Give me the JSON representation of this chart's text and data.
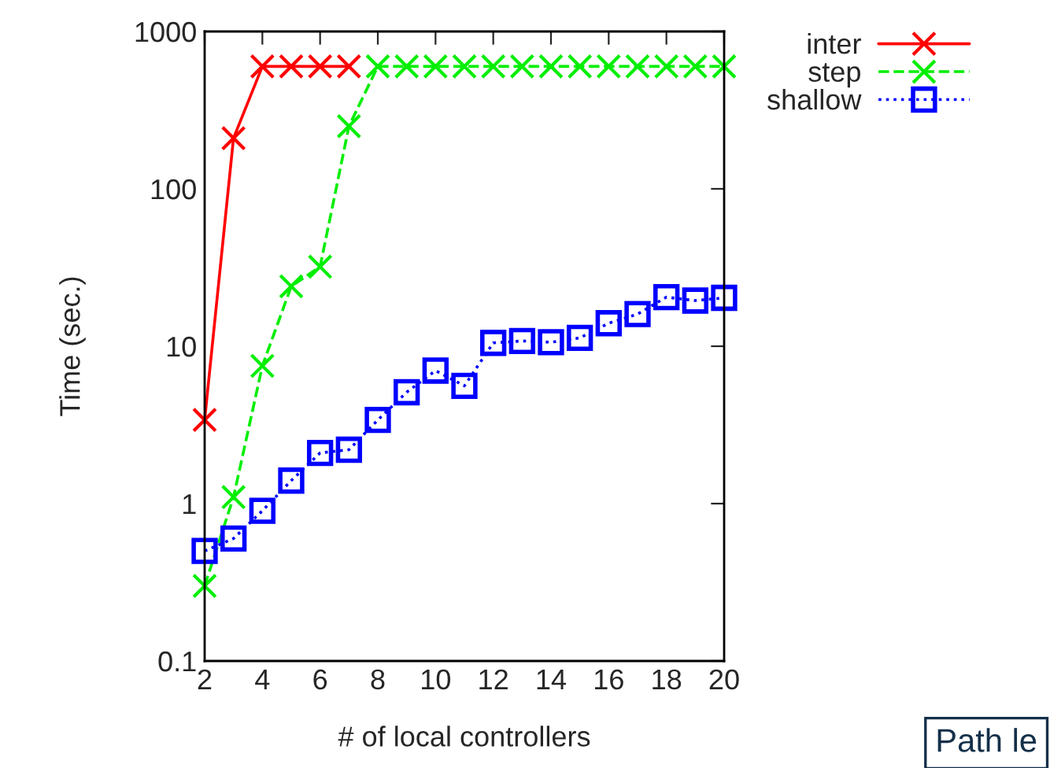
{
  "chart_data": {
    "type": "line",
    "xlabel": "# of local controllers",
    "ylabel": "Time (sec.)",
    "x": [
      2,
      3,
      4,
      5,
      6,
      7,
      8,
      9,
      10,
      11,
      12,
      13,
      14,
      15,
      16,
      17,
      18,
      19,
      20
    ],
    "series": [
      {
        "name": "inter",
        "color": "#ff0000",
        "marker": "cross",
        "line_style": "solid",
        "values": [
          3.4,
          210,
          600,
          600,
          600,
          600,
          null,
          null,
          null,
          null,
          null,
          null,
          null,
          null,
          null,
          null,
          null,
          null,
          null
        ]
      },
      {
        "name": "step",
        "color": "#00ee00",
        "marker": "cross",
        "line_style": "dashed",
        "values": [
          0.3,
          1.1,
          7.5,
          24,
          32,
          250,
          600,
          600,
          600,
          600,
          600,
          600,
          600,
          600,
          600,
          600,
          600,
          600,
          600
        ]
      },
      {
        "name": "shallow",
        "color": "#0000ff",
        "marker": "square",
        "line_style": "dotted",
        "values": [
          0.5,
          0.6,
          0.9,
          1.4,
          2.1,
          2.2,
          3.4,
          5.1,
          7.0,
          5.6,
          10.5,
          10.8,
          10.6,
          11.3,
          14,
          16,
          20.5,
          19.5,
          20.3
        ]
      }
    ],
    "log": "y",
    "xlim": [
      2,
      20
    ],
    "ylim": [
      0.1,
      1000
    ],
    "xticks": [
      2,
      4,
      6,
      8,
      10,
      12,
      14,
      16,
      18,
      20
    ],
    "yticks": [
      {
        "value": 0.1,
        "label": "0.1"
      },
      1,
      10,
      100,
      1000
    ],
    "legend": "top right",
    "grid": false,
    "annotations": [
      "Path le"
    ]
  }
}
